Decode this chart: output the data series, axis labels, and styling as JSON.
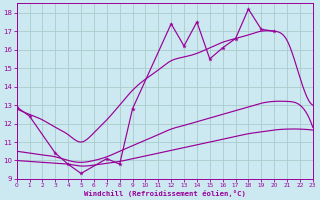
{
  "xlabel": "Windchill (Refroidissement éolien,°C)",
  "background_color": "#cce8f0",
  "grid_color": "#aacccc",
  "line_color": "#990099",
  "xlim": [
    0,
    23
  ],
  "ylim": [
    9,
    18.5
  ],
  "xticks": [
    0,
    1,
    2,
    3,
    4,
    5,
    6,
    7,
    8,
    9,
    10,
    11,
    12,
    13,
    14,
    15,
    16,
    17,
    18,
    19,
    20,
    21,
    22,
    23
  ],
  "yticks": [
    9,
    10,
    11,
    12,
    13,
    14,
    15,
    16,
    17,
    18
  ],
  "jagged_x": [
    0,
    1,
    3,
    4,
    5,
    7,
    8,
    9,
    12,
    13,
    14,
    15,
    16,
    17,
    18,
    19,
    20
  ],
  "jagged_y": [
    12.9,
    12.4,
    10.4,
    9.8,
    9.3,
    10.1,
    9.8,
    12.8,
    17.4,
    16.2,
    17.5,
    15.5,
    16.1,
    16.6,
    18.2,
    17.1,
    17.0
  ],
  "env_upper_x": [
    0,
    1,
    2,
    3,
    4,
    5,
    6,
    7,
    8,
    9,
    10,
    11,
    12,
    13,
    14,
    15,
    16,
    17,
    18,
    19,
    20,
    21,
    22,
    23
  ],
  "env_upper_y": [
    12.8,
    12.5,
    12.2,
    11.8,
    11.4,
    11.0,
    11.5,
    12.2,
    13.0,
    13.8,
    14.4,
    14.9,
    15.4,
    15.6,
    15.8,
    16.1,
    16.4,
    16.6,
    16.8,
    17.0,
    17.0,
    16.5,
    14.5,
    13.0
  ],
  "env_mid_x": [
    0,
    1,
    2,
    3,
    4,
    5,
    6,
    7,
    8,
    9,
    10,
    11,
    12,
    13,
    14,
    15,
    16,
    17,
    18,
    19,
    20,
    21,
    22,
    23
  ],
  "env_mid_y": [
    10.5,
    10.4,
    10.3,
    10.2,
    10.0,
    9.9,
    10.0,
    10.2,
    10.5,
    10.8,
    11.1,
    11.4,
    11.7,
    11.9,
    12.1,
    12.3,
    12.5,
    12.7,
    12.9,
    13.1,
    13.2,
    13.2,
    13.0,
    11.8
  ],
  "env_low_x": [
    0,
    1,
    2,
    3,
    4,
    5,
    6,
    7,
    8,
    9,
    10,
    11,
    12,
    13,
    14,
    15,
    16,
    17,
    18,
    19,
    20,
    21,
    22,
    23
  ],
  "env_low_y": [
    10.0,
    9.95,
    9.9,
    9.85,
    9.8,
    9.7,
    9.75,
    9.85,
    9.95,
    10.1,
    10.25,
    10.4,
    10.55,
    10.7,
    10.85,
    11.0,
    11.15,
    11.3,
    11.45,
    11.55,
    11.65,
    11.7,
    11.7,
    11.65
  ]
}
